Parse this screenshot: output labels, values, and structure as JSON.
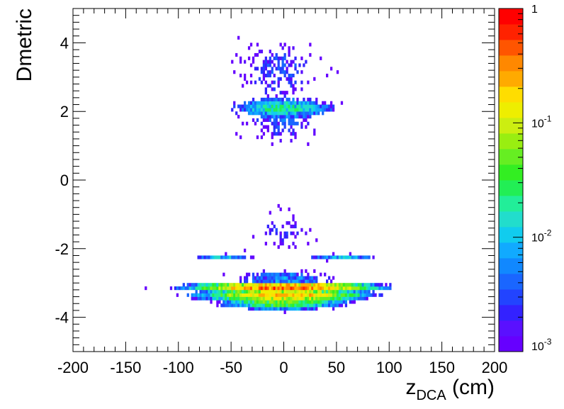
{
  "chart_data": {
    "type": "heatmap",
    "xlabel_main": "z",
    "xlabel_sub": "DCA",
    "xlabel_unit": " (cm)",
    "ylabel": "Dmetric",
    "xlim": [
      -200,
      200
    ],
    "ylim": [
      -5,
      5
    ],
    "x_ticks": [
      -200,
      -150,
      -100,
      -50,
      0,
      50,
      100,
      150,
      200
    ],
    "x_tick_labels": [
      "-200",
      "-150",
      "-100",
      "-50",
      "0",
      "50",
      "100",
      "150",
      "200"
    ],
    "y_ticks": [
      -4,
      -2,
      0,
      2,
      4
    ],
    "y_tick_labels": [
      "-4",
      "-2",
      "0",
      "2",
      "4"
    ],
    "z_scale": "log",
    "zlim": [
      0.001,
      1
    ],
    "colorbar_ticks": [
      {
        "value": 1,
        "base": "1",
        "exp": ""
      },
      {
        "value": 0.1,
        "base": "10",
        "exp": "-1"
      },
      {
        "value": 0.01,
        "base": "10",
        "exp": "-2"
      },
      {
        "value": 0.001,
        "base": "10",
        "exp": "-3"
      }
    ],
    "palette": [
      "#6600ff",
      "#5a10ff",
      "#3322ff",
      "#2244ff",
      "#1a66ff",
      "#1188ff",
      "#11aaff",
      "#11ccee",
      "#22ddcc",
      "#22ee99",
      "#22ee55",
      "#33ee22",
      "#66ee22",
      "#99ee11",
      "#ccee11",
      "#eeee00",
      "#ffdd00",
      "#ffaa00",
      "#ff8800",
      "#ff5500",
      "#ff2200",
      "#ff0000"
    ],
    "clusters": [
      {
        "x_center": 0,
        "x_sigma": 22,
        "y_center": 2.1,
        "y_sigma": 0.12,
        "intensity": 0.02
      },
      {
        "x_center": -5,
        "x_sigma": 22,
        "y_center": 3.2,
        "y_sigma": 0.5,
        "intensity": 0.003
      },
      {
        "x_center": 0,
        "x_sigma": 22,
        "y_center": 1.7,
        "y_sigma": 0.4,
        "intensity": 0.003
      },
      {
        "x_center": -60,
        "x_sigma": 14,
        "y_center": -2.25,
        "y_sigma": 0.04,
        "intensity": 0.01
      },
      {
        "x_center": 55,
        "x_sigma": 16,
        "y_center": -2.25,
        "y_sigma": 0.04,
        "intensity": 0.01
      },
      {
        "x_center": 0,
        "x_sigma": 25,
        "y_center": -2.85,
        "y_sigma": 0.12,
        "intensity": 0.006
      },
      {
        "x_center": 0,
        "x_sigma": 32,
        "y_center": -3.12,
        "y_sigma": 0.05,
        "intensity": 0.6
      },
      {
        "x_center": 0,
        "x_sigma": 30,
        "y_center": -3.35,
        "y_sigma": 0.07,
        "intensity": 0.25
      },
      {
        "x_center": 0,
        "x_sigma": 25,
        "y_center": -3.55,
        "y_sigma": 0.1,
        "intensity": 0.05
      },
      {
        "x_center": 0,
        "x_sigma": 20,
        "y_center": -1.5,
        "y_sigma": 0.35,
        "intensity": 0.002
      }
    ]
  }
}
